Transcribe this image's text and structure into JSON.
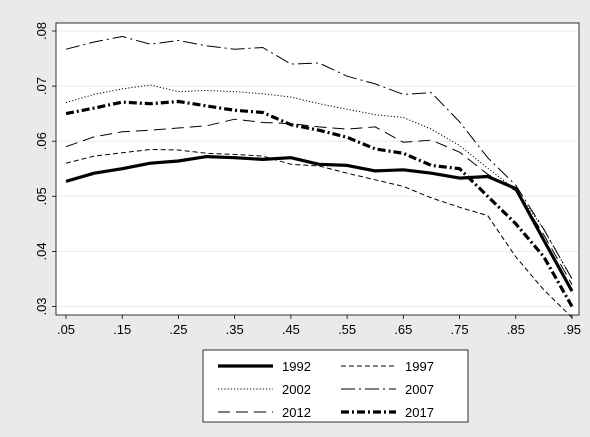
{
  "chart_data": {
    "type": "line",
    "title": "",
    "xlabel": "",
    "ylabel": "",
    "x": [
      0.05,
      0.1,
      0.15,
      0.2,
      0.25,
      0.3,
      0.35,
      0.4,
      0.45,
      0.5,
      0.55,
      0.6,
      0.65,
      0.7,
      0.75,
      0.8,
      0.85,
      0.9,
      0.95
    ],
    "xlim": [
      0.05,
      0.95
    ],
    "ylim": [
      0.029,
      0.08
    ],
    "xticks": [
      ".05",
      ".15",
      ".25",
      ".35",
      ".45",
      ".55",
      ".65",
      ".75",
      ".85",
      ".95"
    ],
    "xtick_values": [
      0.05,
      0.15,
      0.25,
      0.35,
      0.45,
      0.55,
      0.65,
      0.75,
      0.85,
      0.95
    ],
    "yticks": [
      ".03",
      ".04",
      ".05",
      ".06",
      ".07",
      ".08"
    ],
    "ytick_values": [
      0.03,
      0.04,
      0.05,
      0.06,
      0.07,
      0.08
    ],
    "grid": "horizontal",
    "legend_position": "bottom",
    "series": [
      {
        "name": "1992",
        "style": "solid-thick",
        "values": [
          0.0527,
          0.0542,
          0.055,
          0.056,
          0.0564,
          0.0572,
          0.057,
          0.0567,
          0.057,
          0.0558,
          0.0556,
          0.0546,
          0.0548,
          0.0542,
          0.0533,
          0.0536,
          0.0514,
          0.042,
          0.0328
        ]
      },
      {
        "name": "1997",
        "style": "dash",
        "values": [
          0.056,
          0.0573,
          0.0579,
          0.0585,
          0.0584,
          0.0578,
          0.0576,
          0.0573,
          0.0558,
          0.0555,
          0.0542,
          0.053,
          0.0518,
          0.0497,
          0.048,
          0.0465,
          0.039,
          0.033,
          0.028
        ]
      },
      {
        "name": "2002",
        "style": "dot",
        "values": [
          0.067,
          0.0685,
          0.0695,
          0.0702,
          0.069,
          0.0692,
          0.069,
          0.0686,
          0.068,
          0.0668,
          0.0658,
          0.0648,
          0.0643,
          0.0622,
          0.0592,
          0.0551,
          0.0512,
          0.044,
          0.035
        ]
      },
      {
        "name": "2007",
        "style": "longdash-dot",
        "values": [
          0.0767,
          0.078,
          0.079,
          0.0776,
          0.0783,
          0.0773,
          0.0767,
          0.077,
          0.074,
          0.0742,
          0.0718,
          0.0704,
          0.0685,
          0.0688,
          0.0635,
          0.057,
          0.052,
          0.044,
          0.035
        ]
      },
      {
        "name": "2012",
        "style": "longdash",
        "values": [
          0.059,
          0.0608,
          0.0617,
          0.062,
          0.0624,
          0.0628,
          0.064,
          0.0634,
          0.0632,
          0.0626,
          0.0622,
          0.0626,
          0.0598,
          0.0602,
          0.058,
          0.054,
          0.051,
          0.043,
          0.034
        ]
      },
      {
        "name": "2017",
        "style": "dash-dot-thick",
        "values": [
          0.065,
          0.066,
          0.0671,
          0.0668,
          0.0672,
          0.0664,
          0.0656,
          0.0652,
          0.063,
          0.062,
          0.0607,
          0.0586,
          0.0578,
          0.0556,
          0.055,
          0.05,
          0.045,
          0.039,
          0.03
        ]
      }
    ]
  },
  "colors": {
    "background": "#eaeaea",
    "plot_area": "#ffffff",
    "grid": "#eaeaea",
    "line": "#000000"
  }
}
